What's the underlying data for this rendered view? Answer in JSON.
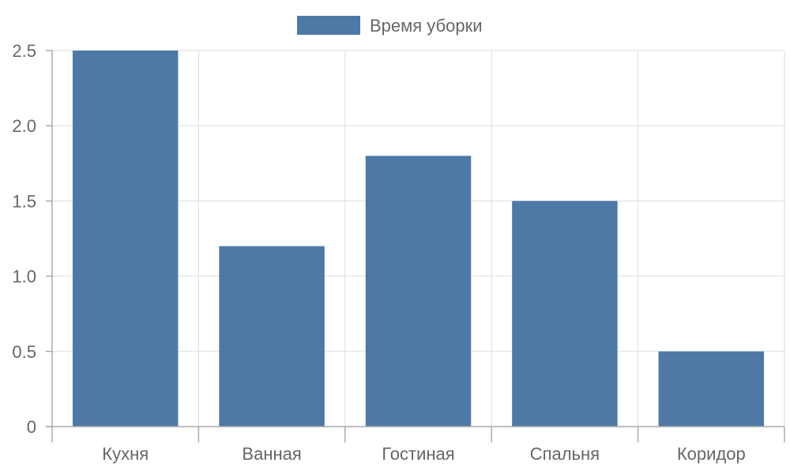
{
  "chart_data": {
    "type": "bar",
    "categories": [
      "Кухня",
      "Ванная",
      "Гостиная",
      "Спальня",
      "Коридор"
    ],
    "series": [
      {
        "name": "Время уборки",
        "values": [
          2.5,
          1.2,
          1.8,
          1.5,
          0.5
        ],
        "color": "#4e79a7"
      }
    ],
    "yticks": [
      "0",
      "0.5",
      "1.0",
      "1.5",
      "2.0",
      "2.5"
    ],
    "ylim": [
      0,
      2.5
    ],
    "title": "",
    "xlabel": "",
    "ylabel": "",
    "grid": true,
    "legend_position": "top-center"
  }
}
